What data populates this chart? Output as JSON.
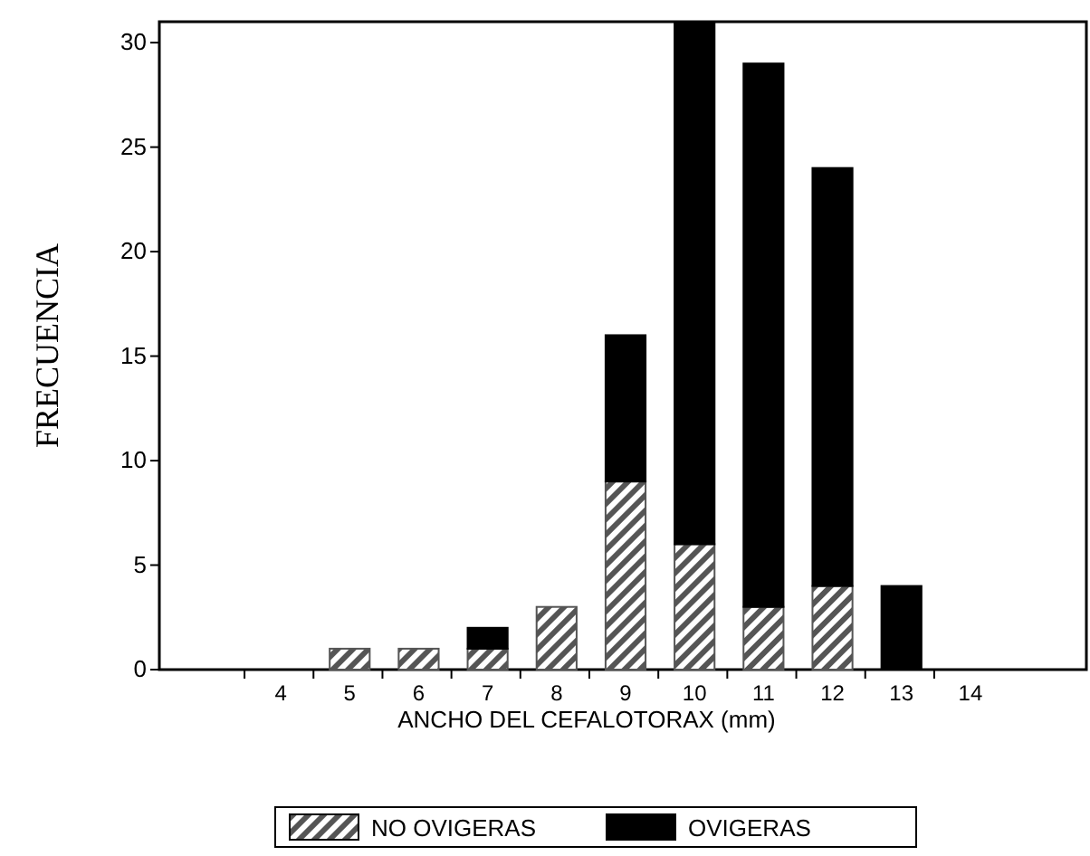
{
  "chart_data": {
    "type": "bar",
    "stacked": true,
    "xlabel": "ANCHO DEL CEFALOTORAX (mm)",
    "ylabel": "FRECUENCIA",
    "categories": [
      "4",
      "5",
      "6",
      "7",
      "8",
      "9",
      "10",
      "11",
      "12",
      "13",
      "14"
    ],
    "series": [
      {
        "name": "NO OVIGERAS",
        "color": "#555555",
        "values": [
          0,
          1,
          1,
          1,
          3,
          9,
          6,
          3,
          4,
          0,
          0
        ]
      },
      {
        "name": "OVIGERAS",
        "color": "#000000",
        "values": [
          0,
          0,
          0,
          1,
          0,
          7,
          25,
          26,
          20,
          4,
          0
        ]
      }
    ],
    "ylim": [
      0,
      31
    ],
    "yticks": [
      0,
      5,
      10,
      15,
      20,
      25,
      30
    ],
    "grid": false,
    "legend": "bottom"
  }
}
